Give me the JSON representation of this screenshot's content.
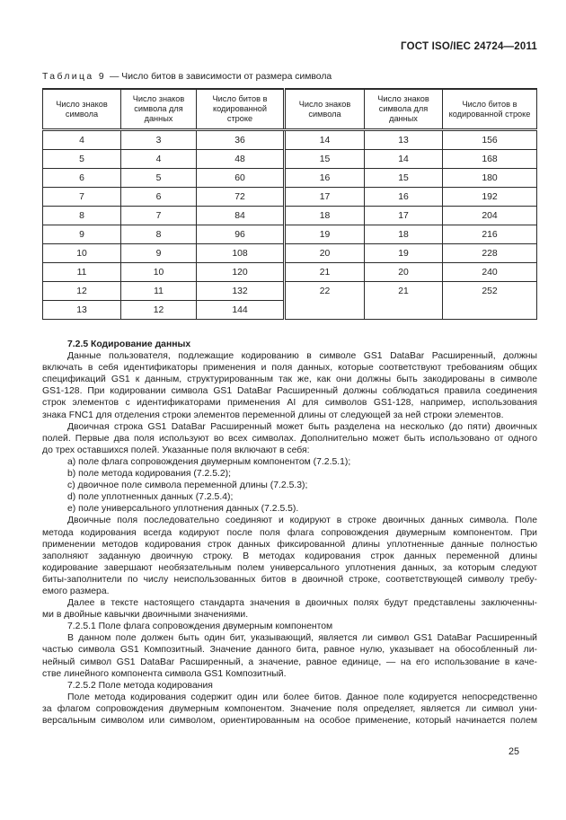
{
  "header": {
    "title": "ГОСТ ISO/IEC 24724—2011"
  },
  "colors": {
    "text": "#1e1e1e",
    "border": "#2b2b2b",
    "background": "#ffffff"
  },
  "table": {
    "caption_label": "Таблица 9",
    "caption_text": "— Число битов в зависимости от размера символа",
    "headers": [
      "Число знаков символа",
      "Число знаков символа для данных",
      "Число битов в кодированной строке",
      "Число знаков символа",
      "Число знаков символа для данных",
      "Число битов в кодированной строке"
    ],
    "left_rows": [
      [
        "4",
        "3",
        "36"
      ],
      [
        "5",
        "4",
        "48"
      ],
      [
        "6",
        "5",
        "60"
      ],
      [
        "7",
        "6",
        "72"
      ],
      [
        "8",
        "7",
        "84"
      ],
      [
        "9",
        "8",
        "96"
      ],
      [
        "10",
        "9",
        "108"
      ],
      [
        "11",
        "10",
        "120"
      ],
      [
        "12",
        "11",
        "132"
      ],
      [
        "13",
        "12",
        "144"
      ]
    ],
    "right_rows": [
      [
        "14",
        "13",
        "156"
      ],
      [
        "15",
        "14",
        "168"
      ],
      [
        "16",
        "15",
        "180"
      ],
      [
        "17",
        "16",
        "192"
      ],
      [
        "18",
        "17",
        "204"
      ],
      [
        "19",
        "18",
        "216"
      ],
      [
        "20",
        "19",
        "228"
      ],
      [
        "21",
        "20",
        "240"
      ],
      [
        "22",
        "21",
        "252"
      ]
    ]
  },
  "body": {
    "blocks": [
      {
        "type": "heading",
        "text": "7.2.5 Кодирование данных"
      },
      {
        "type": "p",
        "lines": [
          "Данные пользователя, подлежащие кодированию в символе GS1 DataBar Расширенный, должны",
          "включать в себя идентификаторы применения и поля данных, которые соответствуют требованиям общих",
          "спецификаций GS1 к данным, структурированным так же, как они должны быть закодированы в символе",
          "GS1-128. При кодировании символа GS1 DataBar Расширенный должны соблюдаться правила соединения",
          "строк элементов с идентификаторами применения AI для символов GS1-128, например, использования",
          "знака FNC1 для отделения строки элементов переменной длины от следующей за ней строки элементов."
        ]
      },
      {
        "type": "p",
        "lines": [
          "Двоичная строка GS1 DataBar Расширенный может быть разделена на несколько (до пяти) двоичных",
          "полей. Первые два поля используют во всех символах. Дополнительно может быть использовано от одного",
          "до трех оставшихся полей. Указанные поля включают в себя:"
        ]
      },
      {
        "type": "list",
        "lines": [
          "a) поле флага сопровождения двумерным компонентом (7.2.5.1);",
          "b) поле метода кодирования (7.2.5.2);",
          "c) двоичное поле символа переменной длины (7.2.5.3);",
          "d) поле уплотненных данных (7.2.5.4);",
          "e) поле универсального уплотнения данных (7.2.5.5)."
        ]
      },
      {
        "type": "p",
        "lines": [
          "Двоичные поля последовательно соединяют и кодируют в строке двоичных данных символа. Поле",
          "метода кодирования всегда кодируют после поля флага сопровождения двумерным компонентом. При",
          "применении методов кодирования строк данных фиксированной длины уплотненные данные полностью",
          "заполняют заданную двоичную строку. В методах кодирования строк данных переменной длины",
          "кодирование завершают необязательным полем универсального уплотнения данных, за которым следуют",
          "биты-заполнители по числу неиспользованных битов в двоичной строке, соответствующей символу требу-",
          "емого размера."
        ]
      },
      {
        "type": "p",
        "lines": [
          "Далее в тексте настоящего стандарта значения в двоичных полях будут представлены заключенны-",
          "ми в двойные кавычки двоичными значениями."
        ]
      },
      {
        "type": "subheading",
        "text": "7.2.5.1 Поле флага сопровождения двумерным компонентом"
      },
      {
        "type": "p",
        "lines": [
          "В данном поле должен быть один бит, указывающий, является ли символ GS1 DataBar Расширенный",
          "частью символа GS1 Композитный. Значение данного бита, равное нулю, указывает на обособленный ли-",
          "нейный символ GS1 DataBar Расширенный, а значение, равное единице, — на его использование в каче-",
          "стве линейного компонента символа GS1 Композитный."
        ]
      },
      {
        "type": "subheading",
        "text": "7.2.5.2 Поле метода кодирования"
      },
      {
        "type": "p",
        "end": "full",
        "lines": [
          "Поле метода кодирования содержит один или более битов. Данное поле кодируется непосредственно",
          "за флагом сопровождения двумерным компонентом. Значение поля определяет, является ли символ уни-",
          "версальным символом или символом, ориентированным на особое применение, который начинается полем"
        ]
      }
    ]
  },
  "footer": {
    "page_number": "25"
  }
}
